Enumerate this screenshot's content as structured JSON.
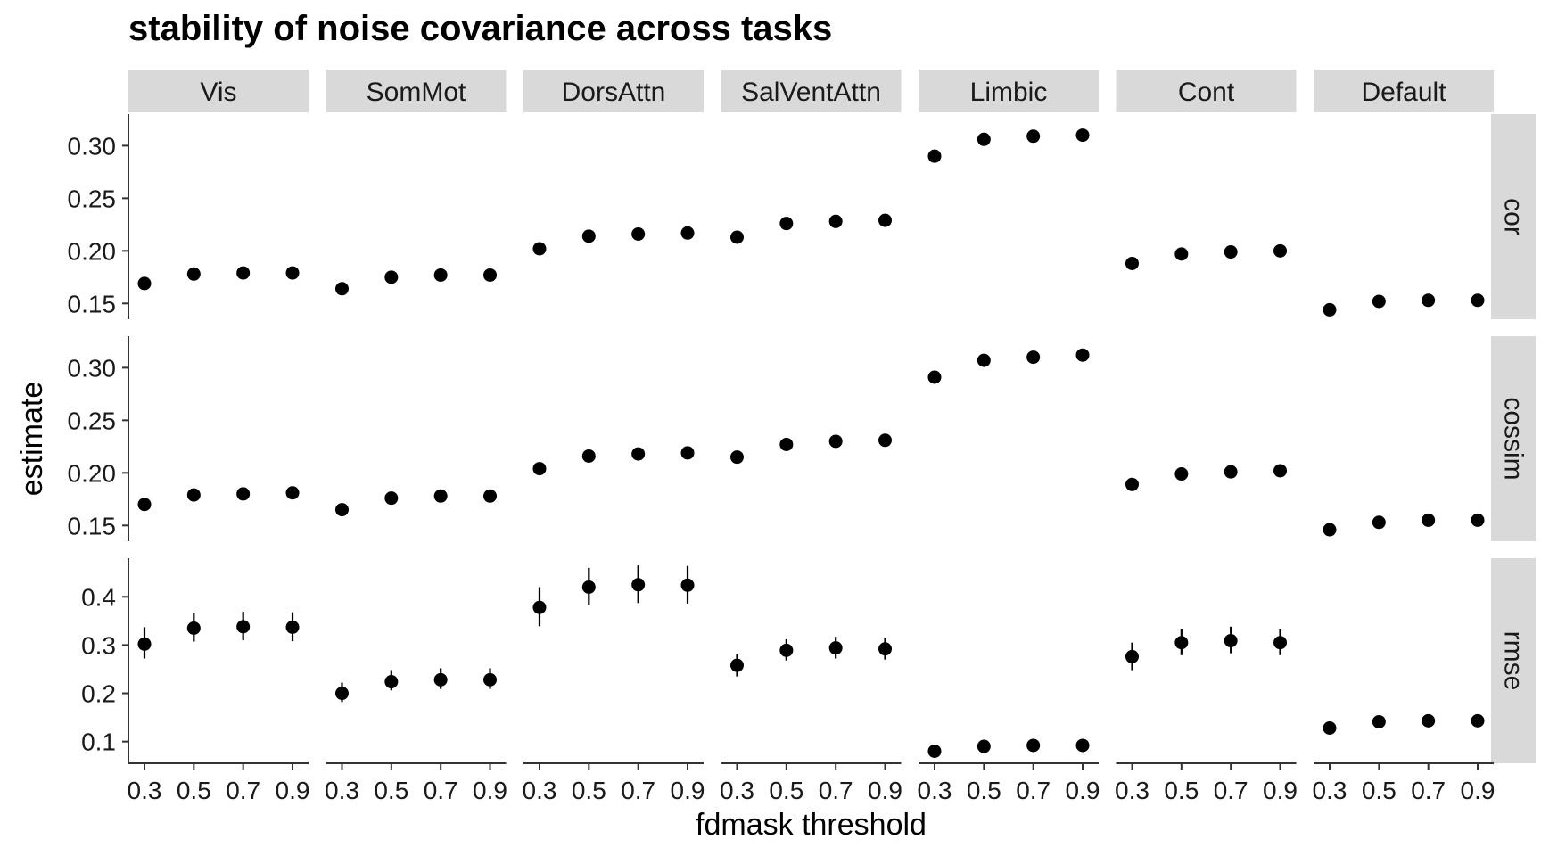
{
  "chart_data": {
    "type": "scatter",
    "title": "stability of noise covariance across tasks",
    "xlabel": "fdmask threshold",
    "ylabel": "estimate",
    "x": [
      0.3,
      0.5,
      0.7,
      0.9
    ],
    "x_tick_labels": [
      "0.3",
      "0.5",
      "0.7",
      "0.9"
    ],
    "columns": [
      "Vis",
      "SomMot",
      "DorsAttn",
      "SalVentAttn",
      "Limbic",
      "Cont",
      "Default"
    ],
    "rows": [
      {
        "name": "cor",
        "ylim": [
          0.135,
          0.33
        ],
        "yticks": [
          0.15,
          0.2,
          0.25,
          0.3
        ],
        "ytick_labels": [
          "0.15",
          "0.20",
          "0.25",
          "0.30"
        ],
        "panels": [
          {
            "column": "Vis",
            "y": [
              0.169,
              0.178,
              0.179,
              0.179
            ]
          },
          {
            "column": "SomMot",
            "y": [
              0.164,
              0.175,
              0.177,
              0.177
            ]
          },
          {
            "column": "DorsAttn",
            "y": [
              0.202,
              0.214,
              0.216,
              0.217
            ]
          },
          {
            "column": "SalVentAttn",
            "y": [
              0.213,
              0.226,
              0.228,
              0.229
            ]
          },
          {
            "column": "Limbic",
            "y": [
              0.29,
              0.306,
              0.309,
              0.31
            ]
          },
          {
            "column": "Cont",
            "y": [
              0.188,
              0.197,
              0.199,
              0.2
            ]
          },
          {
            "column": "Default",
            "y": [
              0.144,
              0.152,
              0.153,
              0.153
            ]
          }
        ]
      },
      {
        "name": "cossim",
        "ylim": [
          0.135,
          0.33
        ],
        "yticks": [
          0.15,
          0.2,
          0.25,
          0.3
        ],
        "ytick_labels": [
          "0.15",
          "0.20",
          "0.25",
          "0.30"
        ],
        "panels": [
          {
            "column": "Vis",
            "y": [
              0.17,
              0.179,
              0.18,
              0.181
            ]
          },
          {
            "column": "SomMot",
            "y": [
              0.165,
              0.176,
              0.178,
              0.178
            ]
          },
          {
            "column": "DorsAttn",
            "y": [
              0.204,
              0.216,
              0.218,
              0.219
            ]
          },
          {
            "column": "SalVentAttn",
            "y": [
              0.215,
              0.227,
              0.23,
              0.231
            ]
          },
          {
            "column": "Limbic",
            "y": [
              0.291,
              0.307,
              0.31,
              0.312
            ]
          },
          {
            "column": "Cont",
            "y": [
              0.189,
              0.199,
              0.201,
              0.202
            ]
          },
          {
            "column": "Default",
            "y": [
              0.146,
              0.153,
              0.155,
              0.155
            ]
          }
        ]
      },
      {
        "name": "rmse",
        "ylim": [
          0.055,
          0.48
        ],
        "yticks": [
          0.1,
          0.2,
          0.3,
          0.4
        ],
        "ytick_labels": [
          "0.1",
          "0.2",
          "0.3",
          "0.4"
        ],
        "panels": [
          {
            "column": "Vis",
            "y": [
              0.302,
              0.335,
              0.338,
              0.337
            ],
            "ymin": [
              0.272,
              0.307,
              0.31,
              0.308
            ],
            "ymax": [
              0.337,
              0.367,
              0.369,
              0.368
            ]
          },
          {
            "column": "SomMot",
            "y": [
              0.2,
              0.224,
              0.228,
              0.228
            ],
            "ymin": [
              0.182,
              0.206,
              0.209,
              0.209
            ],
            "ymax": [
              0.222,
              0.248,
              0.252,
              0.252
            ]
          },
          {
            "column": "DorsAttn",
            "y": [
              0.378,
              0.42,
              0.425,
              0.424
            ],
            "ymin": [
              0.339,
              0.383,
              0.387,
              0.386
            ],
            "ymax": [
              0.42,
              0.46,
              0.465,
              0.464
            ]
          },
          {
            "column": "SalVentAttn",
            "y": [
              0.258,
              0.289,
              0.294,
              0.292
            ],
            "ymin": [
              0.235,
              0.268,
              0.272,
              0.27
            ],
            "ymax": [
              0.282,
              0.312,
              0.317,
              0.315
            ]
          },
          {
            "column": "Limbic",
            "y": [
              0.08,
              0.09,
              0.092,
              0.092
            ],
            "ymin": [
              0.075,
              0.085,
              0.087,
              0.087
            ],
            "ymax": [
              0.086,
              0.096,
              0.098,
              0.098
            ]
          },
          {
            "column": "Cont",
            "y": [
              0.276,
              0.305,
              0.309,
              0.305
            ],
            "ymin": [
              0.248,
              0.279,
              0.283,
              0.279
            ],
            "ymax": [
              0.305,
              0.334,
              0.338,
              0.334
            ]
          },
          {
            "column": "Default",
            "y": [
              0.128,
              0.141,
              0.143,
              0.143
            ],
            "ymin": [
              0.121,
              0.134,
              0.136,
              0.136
            ],
            "ymax": [
              0.136,
              0.148,
              0.15,
              0.15
            ]
          }
        ]
      }
    ],
    "grid": false,
    "legend": "none",
    "colors": {
      "point": "#000000",
      "strip": "#d9d9d9",
      "axis": "#333333"
    }
  }
}
